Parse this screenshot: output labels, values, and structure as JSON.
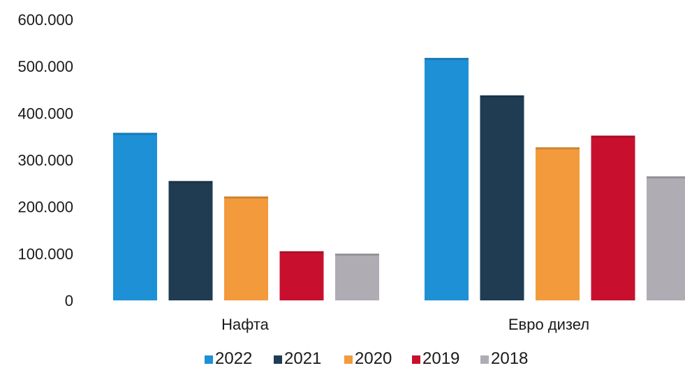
{
  "chart_data": {
    "type": "bar",
    "categories": [
      "Нафта",
      "Евро дизел"
    ],
    "series": [
      {
        "name": "2022",
        "values": [
          358000,
          518000
        ],
        "color": "#1e90d6"
      },
      {
        "name": "2021",
        "values": [
          255000,
          438000
        ],
        "color": "#1f3c52"
      },
      {
        "name": "2020",
        "values": [
          222000,
          327000
        ],
        "color": "#f39a3c"
      },
      {
        "name": "2019",
        "values": [
          105000,
          352000
        ],
        "color": "#c8102e"
      },
      {
        "name": "2018",
        "values": [
          100000,
          265000
        ],
        "color": "#b0acb4"
      }
    ],
    "ylim": [
      0,
      600000
    ],
    "yticks": [
      0,
      100000,
      200000,
      300000,
      400000,
      500000,
      600000
    ],
    "ytick_labels": [
      "0",
      "100.000",
      "200.000",
      "300.000",
      "400.000",
      "500.000",
      "600.000"
    ],
    "legend": "bottom",
    "grid": false,
    "title": "",
    "xlabel": "",
    "ylabel": ""
  }
}
